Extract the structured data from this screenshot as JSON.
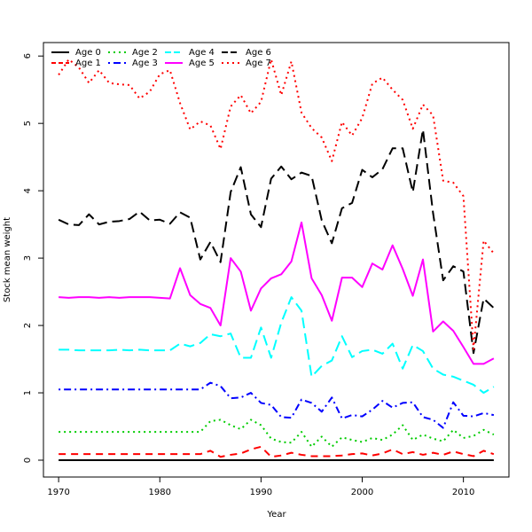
{
  "chart_data": {
    "type": "line",
    "title": "",
    "xlabel": "Year",
    "ylabel": "Stock mean weight",
    "xlim": [
      1968.5,
      2014.5
    ],
    "ylim": [
      -0.25,
      6.2
    ],
    "xticks": [
      1970,
      1980,
      1990,
      2000,
      2010
    ],
    "yticks": [
      0,
      1,
      2,
      3,
      4,
      5,
      6
    ],
    "grid": false,
    "legend_position": "top-left",
    "x": [
      1970,
      1971,
      1972,
      1973,
      1974,
      1975,
      1976,
      1977,
      1978,
      1979,
      1980,
      1981,
      1982,
      1983,
      1984,
      1985,
      1986,
      1987,
      1988,
      1989,
      1990,
      1991,
      1992,
      1993,
      1994,
      1995,
      1996,
      1997,
      1998,
      1999,
      2000,
      2001,
      2002,
      2003,
      2004,
      2005,
      2006,
      2007,
      2008,
      2009,
      2010,
      2011,
      2012,
      2013
    ],
    "series": [
      {
        "name": "Age 0",
        "color": "#000000",
        "dash": "solid",
        "values": [
          0.0,
          0.0,
          0.0,
          0.0,
          0.0,
          0.0,
          0.0,
          0.0,
          0.0,
          0.0,
          0.0,
          0.0,
          0.0,
          0.0,
          0.0,
          0.0,
          0.0,
          0.0,
          0.0,
          0.0,
          0.0,
          0.0,
          0.0,
          0.0,
          0.0,
          0.0,
          0.0,
          0.0,
          0.0,
          0.0,
          0.0,
          0.0,
          0.0,
          0.0,
          0.0,
          0.0,
          0.0,
          0.0,
          0.0,
          0.0,
          0.0,
          0.0,
          0.0,
          0.0
        ]
      },
      {
        "name": "Age 1",
        "color": "#ff0000",
        "dash": "dashed",
        "values": [
          0.09,
          0.09,
          0.09,
          0.09,
          0.09,
          0.09,
          0.09,
          0.09,
          0.09,
          0.09,
          0.09,
          0.09,
          0.09,
          0.09,
          0.09,
          0.14,
          0.05,
          0.08,
          0.1,
          0.16,
          0.2,
          0.05,
          0.07,
          0.11,
          0.08,
          0.06,
          0.06,
          0.06,
          0.07,
          0.09,
          0.1,
          0.07,
          0.1,
          0.16,
          0.09,
          0.12,
          0.08,
          0.11,
          0.08,
          0.13,
          0.09,
          0.06,
          0.14,
          0.09
        ]
      },
      {
        "name": "Age 2",
        "color": "#00cc00",
        "dash": "dotted",
        "values": [
          0.42,
          0.42,
          0.42,
          0.42,
          0.42,
          0.42,
          0.42,
          0.42,
          0.42,
          0.42,
          0.42,
          0.42,
          0.42,
          0.42,
          0.42,
          0.58,
          0.6,
          0.52,
          0.46,
          0.6,
          0.52,
          0.32,
          0.27,
          0.26,
          0.42,
          0.2,
          0.35,
          0.2,
          0.34,
          0.3,
          0.27,
          0.33,
          0.3,
          0.38,
          0.52,
          0.3,
          0.38,
          0.32,
          0.28,
          0.45,
          0.33,
          0.36,
          0.45,
          0.38
        ]
      },
      {
        "name": "Age 3",
        "color": "#0000ff",
        "dash": "dashdot",
        "values": [
          1.05,
          1.05,
          1.05,
          1.05,
          1.05,
          1.05,
          1.05,
          1.05,
          1.05,
          1.05,
          1.05,
          1.05,
          1.05,
          1.05,
          1.05,
          1.15,
          1.1,
          0.92,
          0.93,
          1.0,
          0.85,
          0.82,
          0.64,
          0.63,
          0.9,
          0.85,
          0.72,
          0.93,
          0.62,
          0.67,
          0.65,
          0.75,
          0.88,
          0.78,
          0.85,
          0.86,
          0.64,
          0.6,
          0.48,
          0.86,
          0.66,
          0.65,
          0.7,
          0.67
        ]
      },
      {
        "name": "Age 4",
        "color": "#00ffff",
        "dash": "longdash",
        "values": [
          1.64,
          1.64,
          1.63,
          1.63,
          1.63,
          1.63,
          1.64,
          1.63,
          1.64,
          1.63,
          1.63,
          1.63,
          1.73,
          1.69,
          1.74,
          1.87,
          1.84,
          1.88,
          1.52,
          1.52,
          1.97,
          1.52,
          2.04,
          2.42,
          2.22,
          1.24,
          1.4,
          1.48,
          1.84,
          1.53,
          1.62,
          1.64,
          1.58,
          1.73,
          1.36,
          1.71,
          1.62,
          1.36,
          1.27,
          1.24,
          1.18,
          1.12,
          1.0,
          1.09
        ]
      },
      {
        "name": "Age 5",
        "color": "#ff00ff",
        "dash": "solid",
        "values": [
          2.42,
          2.41,
          2.42,
          2.42,
          2.41,
          2.42,
          2.41,
          2.42,
          2.42,
          2.42,
          2.41,
          2.4,
          2.85,
          2.45,
          2.32,
          2.26,
          2.0,
          3.0,
          2.8,
          2.22,
          2.55,
          2.7,
          2.76,
          2.95,
          3.53,
          2.7,
          2.45,
          2.07,
          2.71,
          2.71,
          2.57,
          2.92,
          2.83,
          3.19,
          2.84,
          2.44,
          2.98,
          1.91,
          2.06,
          1.92,
          1.68,
          1.43,
          1.43,
          1.51
        ]
      },
      {
        "name": "Age 6",
        "color": "#000000",
        "dash": "longdash",
        "values": [
          3.57,
          3.5,
          3.49,
          3.65,
          3.5,
          3.54,
          3.55,
          3.58,
          3.69,
          3.56,
          3.57,
          3.51,
          3.68,
          3.6,
          2.98,
          3.24,
          2.94,
          3.98,
          4.35,
          3.65,
          3.46,
          4.18,
          4.36,
          4.17,
          4.27,
          4.22,
          3.56,
          3.22,
          3.74,
          3.82,
          4.31,
          4.2,
          4.32,
          4.63,
          4.63,
          3.98,
          4.91,
          3.67,
          2.67,
          2.88,
          2.8,
          1.59,
          2.4,
          2.26
        ]
      },
      {
        "name": "Age 7",
        "color": "#ff0000",
        "dash": "dotted",
        "values": [
          5.72,
          5.95,
          5.83,
          5.6,
          5.79,
          5.6,
          5.58,
          5.57,
          5.37,
          5.47,
          5.73,
          5.79,
          5.3,
          4.91,
          5.03,
          4.97,
          4.62,
          5.25,
          5.42,
          5.15,
          5.32,
          5.95,
          5.42,
          5.92,
          5.16,
          4.93,
          4.79,
          4.44,
          5.02,
          4.82,
          5.08,
          5.59,
          5.68,
          5.5,
          5.35,
          4.92,
          5.28,
          5.12,
          4.15,
          4.12,
          3.92,
          1.65,
          3.26,
          3.07
        ]
      }
    ]
  }
}
